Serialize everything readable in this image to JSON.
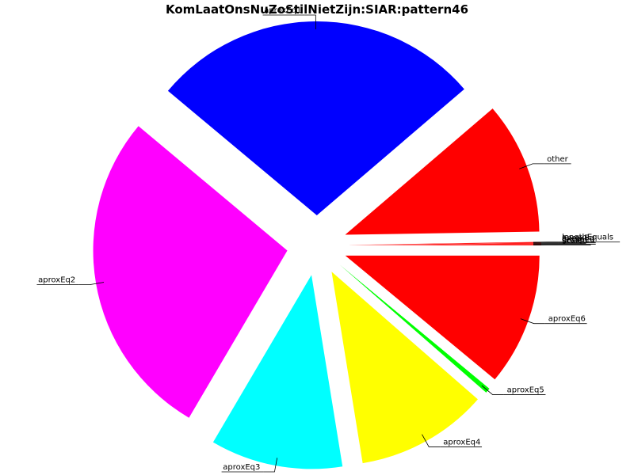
{
  "chart_data": {
    "type": "pie",
    "title": "KomLaatOnsNuZoStilNietZijn:SIAR:pattern46",
    "start_angle_deg": 0,
    "direction": "clockwise",
    "exploded": true,
    "slices": [
      {
        "label": "aproxEq6",
        "value": 10.6,
        "color": "#ff0000"
      },
      {
        "label": "aproxEq5",
        "value": 0.4,
        "color": "#00ff00"
      },
      {
        "label": "aproxEq4",
        "value": 10.6,
        "color": "#ffff00"
      },
      {
        "label": "aproxEq3",
        "value": 10.6,
        "color": "#00ffff"
      },
      {
        "label": "aproxEq2",
        "value": 26.6,
        "color": "#ff00ff"
      },
      {
        "label": "aproxEq1",
        "value": 26.6,
        "color": "#0000ff"
      },
      {
        "label": "other",
        "value": 10.6,
        "color": "#ff0000"
      },
      {
        "label": "lengthEquals",
        "value": 0.05,
        "color": "#ff0000"
      },
      {
        "label": "aproxEq",
        "value": 0.05,
        "color": "#ff0000"
      },
      {
        "label": "fixed",
        "value": 0.05,
        "color": "#ff0000"
      },
      {
        "label": "grouped",
        "value": 0.05,
        "color": "#ff0000"
      },
      {
        "label": "scaled",
        "value": 0.05,
        "color": "#ff0000"
      }
    ]
  }
}
